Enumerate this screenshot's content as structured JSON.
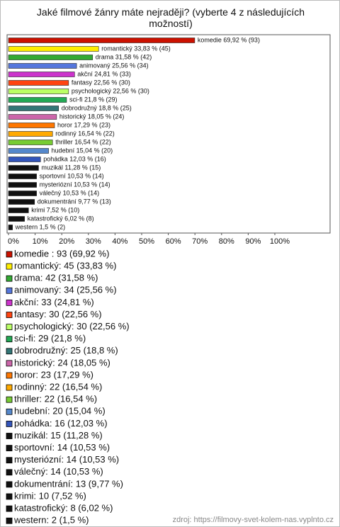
{
  "chart_data": {
    "type": "bar",
    "orientation": "horizontal",
    "title": "Jaké filmové žánry máte nejraději? (vyberte 4 z následujících možností)",
    "values": [
      69.92,
      33.83,
      31.58,
      25.56,
      24.81,
      22.56,
      22.56,
      21.8,
      18.8,
      18.05,
      17.29,
      16.54,
      16.54,
      15.04,
      12.03,
      11.28,
      10.53,
      10.53,
      10.53,
      9.77,
      7.52,
      6.02,
      1.5
    ],
    "value_labels": [
      "komedie  69,92 % (93)",
      "romantický 33,83 % (45)",
      "drama 31,58 % (42)",
      "animovaný 25,56 % (34)",
      "akční 24,81 % (33)",
      "fantasy 22,56 % (30)",
      "psychologický 22,56 % (30)",
      "sci-fi 21,8 % (29)",
      "dobrodružný 18,8 % (25)",
      "historický 18,05 % (24)",
      "horor 17,29 % (23)",
      "rodinný 16,54 % (22)",
      "thriller 16,54 % (22)",
      "hudební 15,04 % (20)",
      "pohádka 12,03 % (16)",
      "muzikál 11,28 % (15)",
      "sportovní 10,53 % (14)",
      "mysteriózní 10,53 % (14)",
      "válečný 10,53 % (14)",
      "dokumentrání 9,77 % (13)",
      "krimi 7,52 % (10)",
      "katastrofický 6,02 % (8)",
      "western 1,5 % (2)"
    ],
    "legend": [
      "komedie : 93 (69,92 %)",
      "romantický: 45 (33,83 %)",
      "drama: 42 (31,58 %)",
      "animovaný: 34 (25,56 %)",
      "akční: 33 (24,81 %)",
      "fantasy: 30 (22,56 %)",
      "psychologický: 30 (22,56 %)",
      "sci-fi: 29 (21,8 %)",
      "dobrodružný: 25 (18,8 %)",
      "historický: 24 (18,05 %)",
      "horor: 23 (17,29 %)",
      "rodinný: 22 (16,54 %)",
      "thriller: 22 (16,54 %)",
      "hudební: 20 (15,04 %)",
      "pohádka: 16 (12,03 %)",
      "muzikál: 15 (11,28 %)",
      "sportovní: 14 (10,53 %)",
      "mysteriózní: 14 (10,53 %)",
      "válečný: 14 (10,53 %)",
      "dokumentrání: 13 (9,77 %)",
      "krimi: 10 (7,52 %)",
      "katastrofický: 8 (6,02 %)",
      "western: 2 (1,5 %)"
    ],
    "colors": [
      "#cc1100",
      "#ffee00",
      "#33aa33",
      "#5577dd",
      "#cc33cc",
      "#ff4411",
      "#bbff66",
      "#22aa55",
      "#337777",
      "#cc66aa",
      "#ff7700",
      "#ffaa00",
      "#77cc33",
      "#5588cc",
      "#3355bb",
      "#111111",
      "#111111",
      "#111111",
      "#111111",
      "#111111",
      "#111111",
      "#111111",
      "#111111"
    ],
    "xlim": [
      0,
      100
    ],
    "xticks": [
      {
        "value": 0,
        "label": "0%"
      },
      {
        "value": 10,
        "label": "10%"
      },
      {
        "value": 20,
        "label": "20%"
      },
      {
        "value": 30,
        "label": "30%"
      },
      {
        "value": 40,
        "label": "40%"
      },
      {
        "value": 50,
        "label": "50%"
      },
      {
        "value": 60,
        "label": "60%"
      },
      {
        "value": 70,
        "label": "70%"
      },
      {
        "value": 80,
        "label": "80%"
      },
      {
        "value": 90,
        "label": "90%"
      },
      {
        "value": 100,
        "label": "100%"
      }
    ],
    "source": "zdroj: https://filmovy-svet-kolem-nas.vyplnto.cz"
  }
}
